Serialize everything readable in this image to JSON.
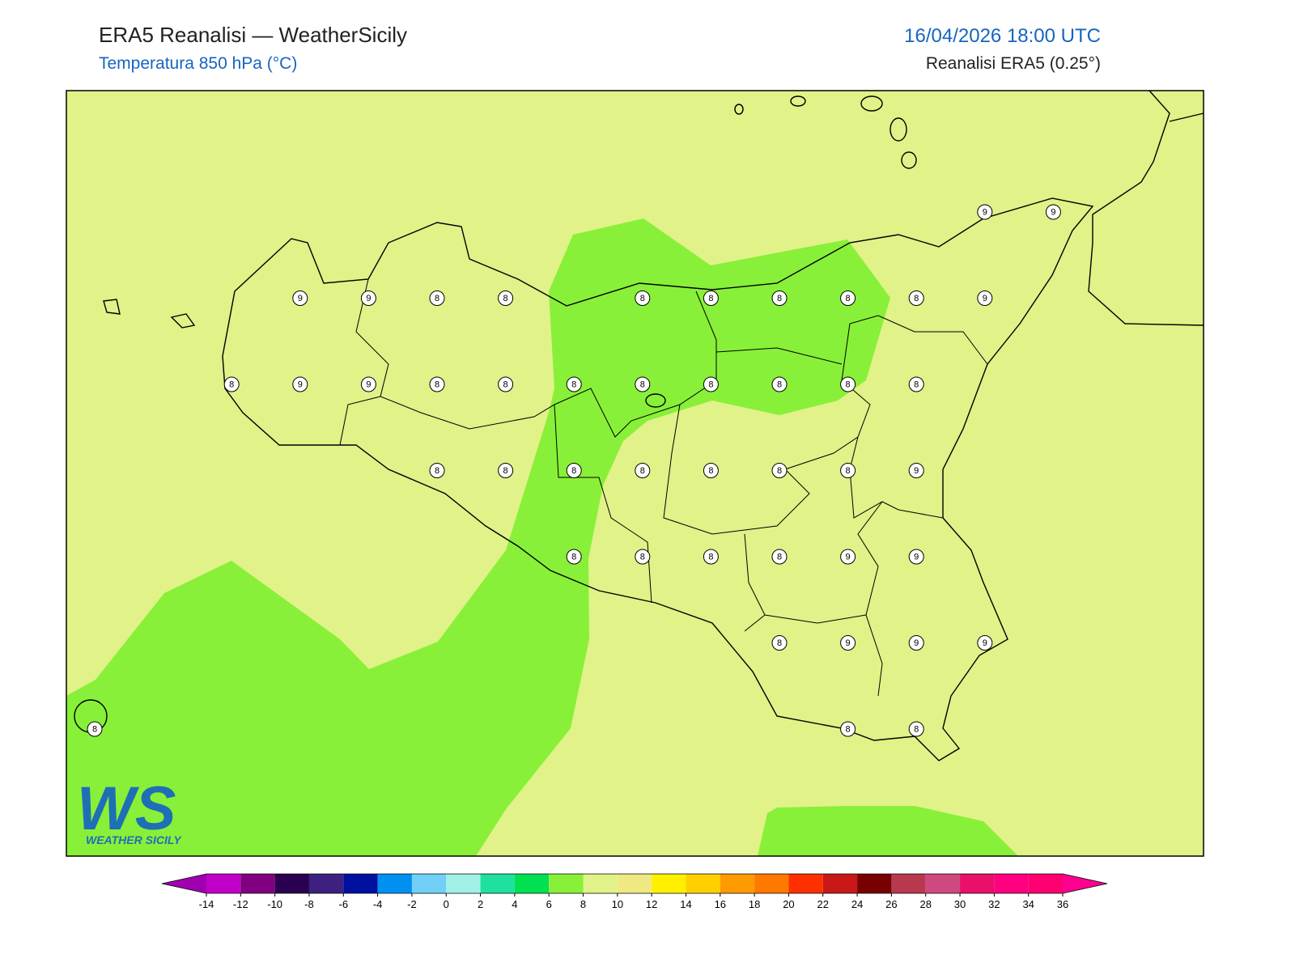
{
  "header": {
    "title": "ERA5 Reanalisi — WeatherSicily",
    "subtitle": "Temperatura 850 hPa (°C)",
    "datetime": "16/04/2026 18:00 UTC",
    "source": "Reanalisi ERA5 (0.25°)"
  },
  "grid": {
    "values": [
      [
        null,
        null,
        null,
        null,
        null,
        null,
        null,
        null,
        null,
        null,
        null,
        null,
        null,
        9,
        9
      ],
      [
        null,
        null,
        null,
        9,
        9,
        8,
        8,
        null,
        8,
        8,
        8,
        8,
        8,
        9,
        null
      ],
      [
        null,
        null,
        8,
        9,
        9,
        8,
        8,
        8,
        8,
        8,
        8,
        8,
        8,
        null,
        null
      ],
      [
        null,
        null,
        null,
        null,
        null,
        8,
        8,
        8,
        8,
        8,
        8,
        8,
        9,
        null,
        null
      ],
      [
        null,
        null,
        null,
        null,
        null,
        null,
        null,
        8,
        8,
        8,
        8,
        9,
        9,
        null,
        null
      ],
      [
        null,
        null,
        null,
        null,
        null,
        null,
        null,
        null,
        null,
        null,
        8,
        9,
        9,
        9,
        null
      ],
      [
        8,
        null,
        null,
        null,
        null,
        null,
        null,
        null,
        null,
        null,
        null,
        8,
        8,
        null,
        null
      ]
    ]
  },
  "logo": {
    "mark": "WS",
    "text": "WEATHER SICILY"
  },
  "colorbar": {
    "ticks": [
      -14,
      -12,
      -10,
      -8,
      -6,
      -4,
      -2,
      0,
      2,
      4,
      6,
      8,
      10,
      12,
      14,
      16,
      18,
      20,
      22,
      24,
      26,
      28,
      30,
      32,
      34,
      36
    ],
    "colors": [
      "#c000c8",
      "#800080",
      "#2a0050",
      "#3d2080",
      "#0010a0",
      "#0090f0",
      "#70d0f8",
      "#a0f0e8",
      "#20e0a0",
      "#00e050",
      "#88f038",
      "#e0f288",
      "#f0e880",
      "#fff000",
      "#ffd000",
      "#ff9a00",
      "#ff7800",
      "#ff3000",
      "#c81818",
      "#780000",
      "#b83850",
      "#d04880",
      "#e81068",
      "#ff0080",
      "#ff0070"
    ],
    "under_color": "#a000b0",
    "over_color": "#ff0090"
  }
}
